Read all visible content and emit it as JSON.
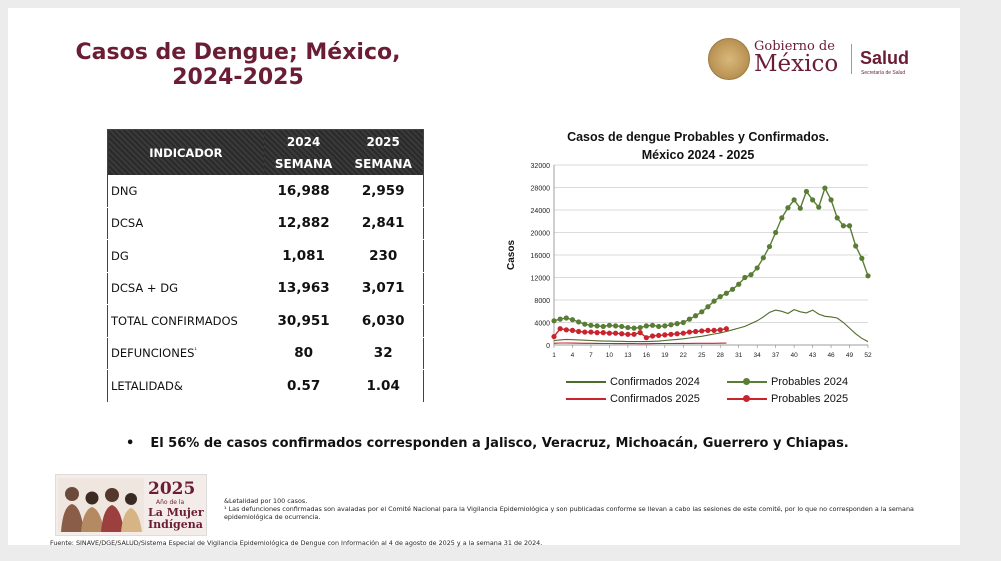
{
  "slide": {
    "title_line1": "Casos de Dengue; México,",
    "title_line2": "2024-2025"
  },
  "logo": {
    "gobierno": "Gobierno de",
    "mexico": "México",
    "salud": "Salud",
    "secretaria": "Secretaría de Salud"
  },
  "table": {
    "header": {
      "indicador": "INDICADOR",
      "y2024": "2024",
      "y2025": "2025",
      "semana": "SEMANA"
    },
    "rows": [
      {
        "label": "DNG",
        "v2024": "16,988",
        "v2025": "2,959"
      },
      {
        "label": "DCSA",
        "v2024": "12,882",
        "v2025": "2,841"
      },
      {
        "label": "DG",
        "v2024": "1,081",
        "v2025": "230"
      },
      {
        "label": "DCSA + DG",
        "v2024": "13,963",
        "v2025": "3,071"
      },
      {
        "label": "TOTAL CONFIRMADOS",
        "v2024": "30,951",
        "v2025": "6,030"
      },
      {
        "label": "DEFUNCIONES",
        "sup": "¹",
        "v2024": "80",
        "v2025": "32"
      },
      {
        "label": "LETALIDAD&",
        "v2024": "0.57",
        "v2025": "1.04"
      }
    ]
  },
  "chart_data": {
    "type": "line",
    "title_line1": "Casos de dengue Probables y Confirmados.",
    "title_line2": "México 2024 - 2025",
    "ylabel": "Casos",
    "xlabel": "",
    "ylim": [
      0,
      32000
    ],
    "yticks": [
      "0",
      "4000",
      "8000",
      "12000",
      "16000",
      "20000",
      "24000",
      "28000",
      "32000"
    ],
    "xticks": [
      "1",
      "4",
      "7",
      "10",
      "13",
      "16",
      "19",
      "22",
      "25",
      "28",
      "31",
      "34",
      "37",
      "40",
      "43",
      "46",
      "49",
      "52"
    ],
    "grid": "horizontal",
    "legend_position": "bottom",
    "series": [
      {
        "name": "Confirmados 2024",
        "color": "#4f6b2c",
        "marker": "none",
        "x": [
          1,
          2,
          3,
          4,
          5,
          6,
          7,
          8,
          9,
          10,
          11,
          12,
          13,
          14,
          15,
          16,
          17,
          18,
          19,
          20,
          21,
          22,
          23,
          24,
          25,
          26,
          27,
          28,
          29,
          30,
          31,
          32,
          33,
          34,
          35,
          36,
          37,
          38,
          39,
          40,
          41,
          42,
          43,
          44,
          45,
          46,
          47,
          48,
          49,
          50,
          51,
          52
        ],
        "values": [
          800,
          900,
          1000,
          950,
          900,
          850,
          800,
          750,
          700,
          700,
          650,
          650,
          600,
          600,
          600,
          600,
          650,
          700,
          800,
          900,
          1000,
          1100,
          1250,
          1400,
          1550,
          1750,
          1950,
          2150,
          2400,
          2700,
          3000,
          3300,
          3800,
          4300,
          5000,
          5800,
          6200,
          6000,
          5600,
          6300,
          5900,
          5700,
          6200,
          5500,
          5100,
          5000,
          4800,
          4000,
          3000,
          2000,
          1200,
          600
        ]
      },
      {
        "name": "Probables 2024",
        "color": "#5a7d35",
        "marker": "circle",
        "x": [
          1,
          2,
          3,
          4,
          5,
          6,
          7,
          8,
          9,
          10,
          11,
          12,
          13,
          14,
          15,
          16,
          17,
          18,
          19,
          20,
          21,
          22,
          23,
          24,
          25,
          26,
          27,
          28,
          29,
          30,
          31,
          32,
          33,
          34,
          35,
          36,
          37,
          38,
          39,
          40,
          41,
          42,
          43,
          44,
          45,
          46,
          47,
          48,
          49,
          50,
          51,
          52
        ],
        "values": [
          4300,
          4600,
          4800,
          4500,
          4100,
          3700,
          3500,
          3400,
          3300,
          3500,
          3400,
          3300,
          3100,
          3000,
          3100,
          3400,
          3500,
          3300,
          3400,
          3600,
          3800,
          4000,
          4600,
          5200,
          5900,
          6800,
          7800,
          8600,
          9200,
          9900,
          10800,
          12000,
          12500,
          13700,
          15500,
          17500,
          20000,
          22600,
          24400,
          25800,
          24300,
          27300,
          25800,
          24500,
          27900,
          25800,
          22600,
          21200,
          21200,
          17600,
          15400,
          12300
        ]
      },
      {
        "name": "Confirmados 2025",
        "color": "#c9232d",
        "marker": "none",
        "x": [
          1,
          2,
          3,
          4,
          5,
          6,
          7,
          8,
          9,
          10,
          11,
          12,
          13,
          14,
          15,
          16,
          17,
          18,
          19,
          20,
          21,
          22,
          23,
          24,
          25,
          26,
          27,
          28,
          29
        ],
        "values": [
          300,
          350,
          350,
          330,
          320,
          300,
          300,
          280,
          270,
          260,
          250,
          250,
          250,
          250,
          240,
          240,
          250,
          260,
          260,
          270,
          280,
          280,
          290,
          300,
          300,
          310,
          310,
          320,
          330
        ]
      },
      {
        "name": "Probables 2025",
        "color": "#c9232d",
        "marker": "circle",
        "x": [
          1,
          2,
          3,
          4,
          5,
          6,
          7,
          8,
          9,
          10,
          11,
          12,
          13,
          14,
          15,
          16,
          17,
          18,
          19,
          20,
          21,
          22,
          23,
          24,
          25,
          26,
          27,
          28,
          29
        ],
        "values": [
          1500,
          2900,
          2700,
          2600,
          2400,
          2300,
          2300,
          2200,
          2200,
          2100,
          2100,
          2000,
          1900,
          1900,
          2200,
          1300,
          1600,
          1700,
          1800,
          1900,
          2000,
          2100,
          2300,
          2400,
          2500,
          2600,
          2600,
          2700,
          2900
        ]
      }
    ]
  },
  "bullet": {
    "symbol": "•",
    "text": "El 56% de casos confirmados corresponden a Jalisco, Veracruz, Michoacán, Guerrero y Chiapas."
  },
  "badge": {
    "year": "2025",
    "line1": "Año de la",
    "line2": "La Mujer",
    "line3": "Indígena"
  },
  "notes": {
    "n1": "&Letalidad por 100 casos.",
    "n2": "¹ Las defunciones confirmadas son avaladas por el Comité Nacional para la Vigilancia Epidemiológica y son publicadas conforme se llevan a cabo las sesiones de este comité, por lo que no corresponden a la semana epidemiológica de ocurrencia."
  },
  "fuente": "Fuente: SINAVE/DGE/SALUD/Sistema Especial de Vigilancia Epidemiológica de Dengue con Información al 4 de agosto de 2025 y a la semana 31 de 2024."
}
